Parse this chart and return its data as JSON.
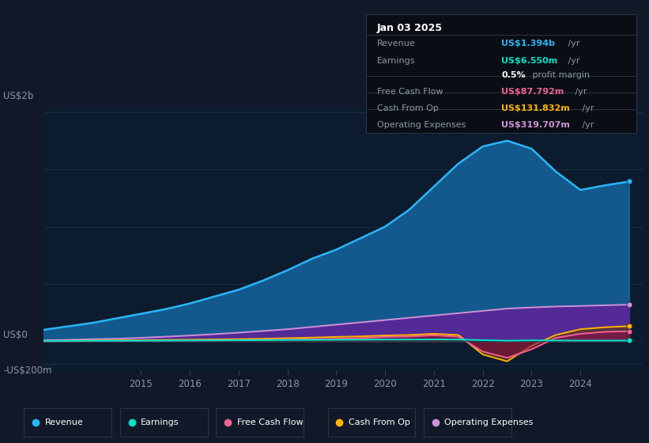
{
  "bg_color": "#111827",
  "plot_bg_color": "#0d1b2e",
  "years": [
    2013.0,
    2013.5,
    2014.0,
    2014.5,
    2015.0,
    2015.5,
    2016.0,
    2016.5,
    2017.0,
    2017.5,
    2018.0,
    2018.5,
    2019.0,
    2019.5,
    2020.0,
    2020.5,
    2021.0,
    2021.5,
    2022.0,
    2022.5,
    2023.0,
    2023.5,
    2024.0,
    2024.5,
    2025.0
  ],
  "revenue": [
    100,
    130,
    160,
    200,
    240,
    280,
    330,
    390,
    450,
    530,
    620,
    720,
    800,
    900,
    1000,
    1150,
    1350,
    1550,
    1700,
    1750,
    1680,
    1480,
    1320,
    1360,
    1394
  ],
  "earnings": [
    3,
    3,
    4,
    4,
    5,
    6,
    7,
    8,
    9,
    10,
    11,
    12,
    13,
    14,
    15,
    15,
    16,
    15,
    10,
    5,
    8,
    7,
    6,
    6,
    6.55
  ],
  "free_cash_flow": [
    -2,
    0,
    2,
    3,
    4,
    5,
    7,
    8,
    10,
    12,
    15,
    18,
    22,
    28,
    38,
    42,
    52,
    40,
    -90,
    -145,
    -70,
    30,
    65,
    82,
    87.792
  ],
  "cash_from_op": [
    3,
    4,
    6,
    8,
    10,
    12,
    14,
    16,
    18,
    22,
    27,
    32,
    38,
    43,
    50,
    55,
    65,
    55,
    -115,
    -175,
    -40,
    55,
    105,
    122,
    131.832
  ],
  "operating_expenses": [
    8,
    12,
    18,
    22,
    30,
    40,
    50,
    62,
    75,
    90,
    105,
    125,
    145,
    165,
    185,
    205,
    225,
    245,
    265,
    285,
    295,
    303,
    308,
    314,
    319.707
  ],
  "revenue_color": "#29b6f6",
  "revenue_fill": "#1565a0",
  "earnings_color": "#00e5cc",
  "earnings_fill": "#004d40",
  "fcf_color": "#f06292",
  "fcf_fill": "#880e4f",
  "cfop_color": "#ffb300",
  "cfop_fill": "#5d3a00",
  "opex_color": "#ce93d8",
  "opex_fill": "#6a1b9a",
  "x_ticks": [
    2015,
    2016,
    2017,
    2018,
    2019,
    2020,
    2021,
    2022,
    2023,
    2024
  ],
  "ylim": [
    -250,
    2050
  ],
  "xlim": [
    2013.0,
    2025.3
  ],
  "y_label_2b": "US$2b",
  "y_label_0": "US$0",
  "y_label_neg": "-US$200m",
  "info_title": "Jan 03 2025",
  "info_rows": [
    {
      "label": "Revenue",
      "val_colored": "US$1.394b",
      "val_plain": " /yr",
      "color": "#29b6f6",
      "sep_before": false
    },
    {
      "label": "Earnings",
      "val_colored": "US$6.550m",
      "val_plain": " /yr",
      "color": "#00e5cc",
      "sep_before": false
    },
    {
      "label": "",
      "val_colored": "0.5%",
      "val_plain": " profit margin",
      "color": "#ffffff",
      "sep_before": false
    },
    {
      "label": "Free Cash Flow",
      "val_colored": "US$87.792m",
      "val_plain": " /yr",
      "color": "#f06292",
      "sep_before": true
    },
    {
      "label": "Cash From Op",
      "val_colored": "US$131.832m",
      "val_plain": " /yr",
      "color": "#ffb300",
      "sep_before": true
    },
    {
      "label": "Operating Expenses",
      "val_colored": "US$319.707m",
      "val_plain": " /yr",
      "color": "#ce93d8",
      "sep_before": true
    }
  ],
  "legend_items": [
    {
      "label": "Revenue",
      "color": "#29b6f6"
    },
    {
      "label": "Earnings",
      "color": "#00e5cc"
    },
    {
      "label": "Free Cash Flow",
      "color": "#f06292"
    },
    {
      "label": "Cash From Op",
      "color": "#ffb300"
    },
    {
      "label": "Operating Expenses",
      "color": "#ce93d8"
    }
  ]
}
